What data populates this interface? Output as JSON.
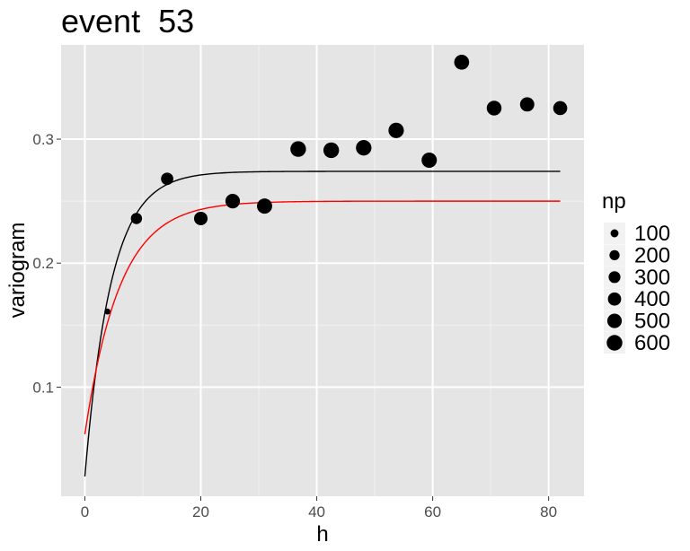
{
  "chart_data": {
    "type": "scatter",
    "title": "event  53",
    "xlabel": "h",
    "ylabel": "variogram",
    "xlim": [
      -4.1,
      86.1
    ],
    "ylim": [
      0.012,
      0.376
    ],
    "x_ticks": [
      0,
      20,
      40,
      60,
      80
    ],
    "y_ticks": [
      0.1,
      0.2,
      0.3
    ],
    "x_tick_labels": [
      "0",
      "20",
      "40",
      "60",
      "80"
    ],
    "y_tick_labels": [
      "0.1",
      "0.2",
      "0.3"
    ],
    "grid": true,
    "legend_placement": "right",
    "legend": {
      "title": "np",
      "entries": [
        {
          "label": "100",
          "np": 100
        },
        {
          "label": "200",
          "np": 200
        },
        {
          "label": "300",
          "np": 300
        },
        {
          "label": "400",
          "np": 400
        },
        {
          "label": "500",
          "np": 500
        },
        {
          "label": "600",
          "np": 600
        }
      ]
    },
    "points": [
      {
        "h": 3.9,
        "variogram": 0.161,
        "np": 40
      },
      {
        "h": 8.9,
        "variogram": 0.236,
        "np": 260
      },
      {
        "h": 14.2,
        "variogram": 0.268,
        "np": 330
      },
      {
        "h": 20.0,
        "variogram": 0.236,
        "np": 420
      },
      {
        "h": 25.5,
        "variogram": 0.25,
        "np": 500
      },
      {
        "h": 31.0,
        "variogram": 0.246,
        "np": 560
      },
      {
        "h": 36.8,
        "variogram": 0.292,
        "np": 600
      },
      {
        "h": 42.5,
        "variogram": 0.291,
        "np": 600
      },
      {
        "h": 48.1,
        "variogram": 0.293,
        "np": 590
      },
      {
        "h": 53.7,
        "variogram": 0.307,
        "np": 580
      },
      {
        "h": 59.4,
        "variogram": 0.283,
        "np": 570
      },
      {
        "h": 65.0,
        "variogram": 0.362,
        "np": 540
      },
      {
        "h": 70.6,
        "variogram": 0.325,
        "np": 520
      },
      {
        "h": 76.3,
        "variogram": 0.328,
        "np": 480
      },
      {
        "h": 82.0,
        "variogram": 0.325,
        "np": 460
      }
    ],
    "series": [
      {
        "type": "line",
        "color": "#000000",
        "model": "exponential",
        "nugget": 0.028,
        "sill": 0.274,
        "range": 4.5,
        "x_from": 0,
        "x_to": 82
      },
      {
        "type": "line",
        "color": "#ff0000",
        "model": "exponential",
        "nugget": 0.062,
        "sill": 0.25,
        "range": 6.0,
        "x_from": 0,
        "x_to": 82
      }
    ]
  }
}
